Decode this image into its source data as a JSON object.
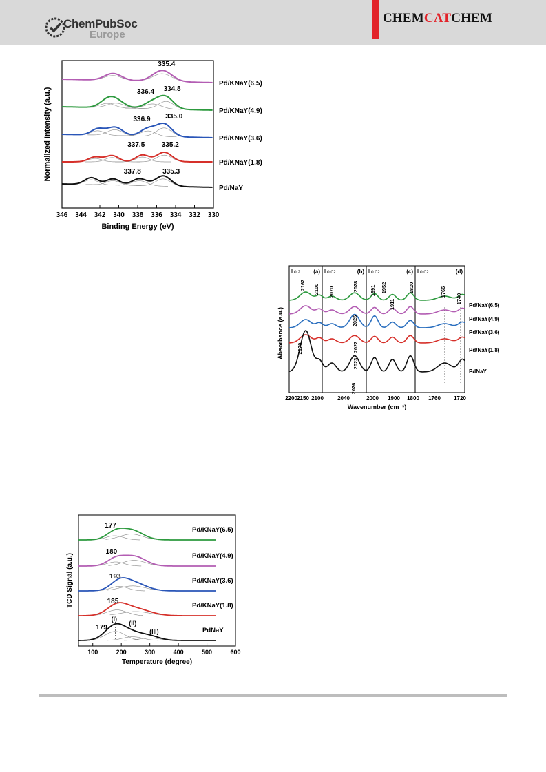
{
  "header": {
    "publisher_name": "ChemPubSoc",
    "publisher_sub": "Europe",
    "journal_parts": [
      "CHEM",
      "CAT",
      "CHEM"
    ],
    "accent_color": "#e2232a"
  },
  "chart_data": [
    {
      "type": "line",
      "xlabel": "Binding Energy (eV)",
      "ylabel": "Normalized Intensity (a.u.)",
      "xlim": [
        346,
        330
      ],
      "x_ticks": [
        "346",
        "344",
        "342",
        "340",
        "338",
        "336",
        "334",
        "332",
        "330"
      ],
      "grid": false,
      "series": [
        {
          "name": "Pd/KNaY(6.5)",
          "color": "#b35db3",
          "peaks_ev": [
            340.6,
            335.4
          ],
          "labels": [
            "335.4"
          ]
        },
        {
          "name": "Pd/KNaY(4.9)",
          "color": "#2d9a3e",
          "peaks_ev": [
            341.0,
            335.6
          ],
          "labels": [
            "336.4",
            "334.8"
          ]
        },
        {
          "name": "Pd/KNaY(3.6)",
          "color": "#2a56b8",
          "peaks_ev": [
            342.0,
            340.3,
            335.4
          ],
          "labels": [
            "336.9",
            "335.0"
          ]
        },
        {
          "name": "Pd/KNaY(1.8)",
          "color": "#d6302a",
          "peaks_ev": [
            342.5,
            340.6,
            335.3
          ],
          "labels": [
            "337.5",
            "335.2"
          ]
        },
        {
          "name": "Pd/NaY",
          "color": "#111111",
          "peaks_ev": [
            342.9,
            340.4,
            335.3
          ],
          "labels": [
            "337.8",
            "335.3"
          ]
        }
      ]
    },
    {
      "type": "line",
      "xlabel": "Wavenumber (cm⁻¹)",
      "ylabel": "Absorbance (a.u.)",
      "panels": [
        {
          "id": "(a)",
          "scale": "0.2",
          "ticks": [
            "2200",
            "2150",
            "2100"
          ],
          "bands": [
            "2162",
            "2100",
            "2170"
          ]
        },
        {
          "id": "(b)",
          "scale": "0.02",
          "ticks": [
            "2040"
          ],
          "bands": [
            "2070",
            "2028",
            "2025",
            "2022",
            "2023",
            "2026"
          ]
        },
        {
          "id": "(c)",
          "scale": "0.02",
          "ticks": [
            "2000",
            "1900",
            "1800"
          ],
          "bands": [
            "1991",
            "1952",
            "1911",
            "1820"
          ]
        },
        {
          "id": "(d)",
          "scale": "0.02",
          "ticks": [
            "1760",
            "1720"
          ],
          "bands": [
            "1766",
            "1740"
          ]
        }
      ],
      "series": [
        {
          "name": "Pd/NaY(6.5)",
          "color": "#2d9a3e"
        },
        {
          "name": "Pd/NaY(4.9)",
          "color": "#b35db3"
        },
        {
          "name": "Pd/NaY(3.6)",
          "color": "#2a6fbf"
        },
        {
          "name": "Pd/NaY(1.8)",
          "color": "#d6302a"
        },
        {
          "name": "PdNaY",
          "color": "#111111"
        }
      ]
    },
    {
      "type": "line",
      "xlabel": "Temperature (degree)",
      "ylabel": "TCD Signal (a.u.)",
      "xlim": [
        50,
        600
      ],
      "x_ticks": [
        "100",
        "200",
        "300",
        "400",
        "500",
        "600"
      ],
      "series": [
        {
          "name": "Pd/KNaY(6.5)",
          "color": "#2d9a3e",
          "peak_label": "177"
        },
        {
          "name": "Pd/KNaY(4.9)",
          "color": "#b35db3",
          "peak_label": "180"
        },
        {
          "name": "Pd/KNaY(3.6)",
          "color": "#2a56b8",
          "peak_label": "193"
        },
        {
          "name": "Pd/KNaY(1.8)",
          "color": "#d6302a",
          "peak_label": "185"
        },
        {
          "name": "PdNaY",
          "color": "#111111",
          "peak_label": "179"
        }
      ],
      "region_labels": [
        "(I)",
        "(II)",
        "(III)"
      ]
    }
  ]
}
